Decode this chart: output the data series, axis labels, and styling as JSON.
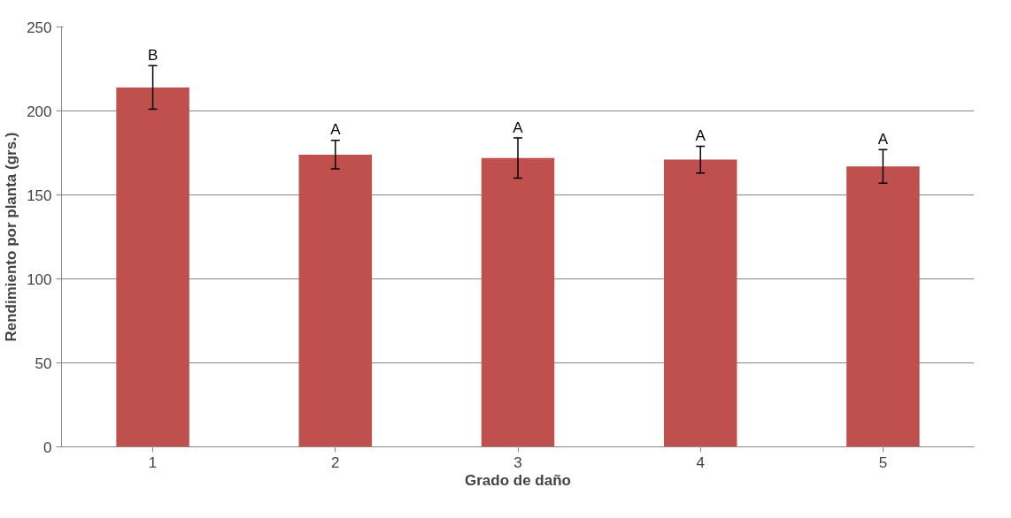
{
  "chart_data": {
    "type": "bar",
    "xlabel": "Grado de daño",
    "ylabel": "Rendimiento por planta (grs.)",
    "categories": [
      "1",
      "2",
      "3",
      "4",
      "5"
    ],
    "values": [
      214,
      174,
      172,
      171,
      167
    ],
    "errors": [
      13,
      8.5,
      12,
      8,
      10
    ],
    "color": "#c0504d",
    "ylim": [
      0,
      250
    ],
    "yticks": [
      0,
      50,
      100,
      150,
      200,
      250
    ],
    "grid": "y",
    "annotations": [
      {
        "text": "B",
        "x": "1",
        "y": 227
      },
      {
        "text": "A",
        "x": "2",
        "y": 183
      },
      {
        "text": "A",
        "x": "3",
        "y": 184
      },
      {
        "text": "A",
        "x": "4",
        "y": 179
      },
      {
        "text": "A",
        "x": "5",
        "y": 177
      }
    ]
  }
}
